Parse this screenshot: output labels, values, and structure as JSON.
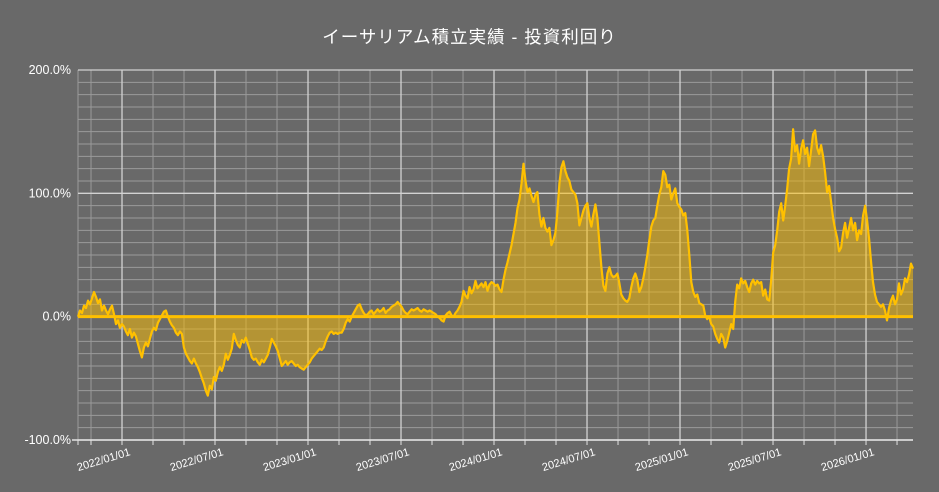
{
  "title": "イーサリアム積立実績 - 投資利回り",
  "chart_data": {
    "type": "area",
    "title": "イーサリアム積立実績 - 投資利回り",
    "series_name": "投資利回り",
    "grid": "on",
    "legend": "none",
    "colors": {
      "background": "#696969",
      "grid_minor": "#9a9a9a",
      "grid_major": "#d2d2d2",
      "axis": "#e3e3e3",
      "text": "#ffffff",
      "line": "#ffc000",
      "fill": "#ffc000",
      "baseline": "#ffc000"
    },
    "fill_opacity": 0.5,
    "y_axis": {
      "unit": "%",
      "min": -100,
      "max": 200,
      "major_step": 100,
      "minor_step": 10,
      "tick_labels": [
        "200.0%",
        "100.0%",
        "0.0%",
        "-100.0%"
      ],
      "tick_values": [
        200,
        100,
        0,
        -100
      ]
    },
    "x_axis": {
      "range_start": "2021/10",
      "range_end": "2026/04",
      "tick_labels": [
        "2022/01/01",
        "2022/07/01",
        "2023/01/01",
        "2023/07/01",
        "2024/01/01",
        "2024/07/01",
        "2025/01/01",
        "2025/07/01",
        "2026/01/01"
      ],
      "first_tick_frac": 0.0527,
      "tick_spacing_frac": 0.11138,
      "minor_divisions_per_major": 3,
      "label_rotation_deg": -17
    },
    "values_note": "investment return %, evenly spaced samples from 2021/10 to 2026/04",
    "values": [
      0,
      5,
      3,
      9,
      7,
      13,
      10,
      15,
      20,
      16,
      11,
      14,
      5,
      9,
      5,
      2,
      6,
      9,
      2,
      -6,
      -3,
      -9,
      -6,
      -8,
      -12,
      -15,
      -10,
      -17,
      -13,
      -16,
      -22,
      -28,
      -33,
      -25,
      -21,
      -24,
      -18,
      -12,
      -9,
      -11,
      -5,
      -2,
      1,
      4,
      5,
      0,
      -4,
      -7,
      -9,
      -13,
      -15,
      -12,
      -14,
      -25,
      -30,
      -33,
      -36,
      -38,
      -34,
      -38,
      -41,
      -45,
      -50,
      -54,
      -60,
      -64,
      -56,
      -59,
      -49,
      -52,
      -45,
      -41,
      -44,
      -39,
      -30,
      -35,
      -31,
      -26,
      -14,
      -19,
      -23,
      -25,
      -19,
      -21,
      -17,
      -22,
      -27,
      -33,
      -35,
      -34,
      -37,
      -39,
      -35,
      -37,
      -34,
      -31,
      -25,
      -18,
      -21,
      -24,
      -28,
      -34,
      -40,
      -38,
      -36,
      -39,
      -37,
      -36,
      -38,
      -40,
      -39,
      -41,
      -42,
      -43,
      -41,
      -39,
      -37,
      -34,
      -32,
      -30,
      -28,
      -26,
      -27,
      -25,
      -20,
      -16,
      -13,
      -12,
      -14,
      -13,
      -14,
      -13,
      -13,
      -10,
      -5,
      -2,
      -4,
      0,
      3,
      6,
      9,
      10,
      6,
      3,
      1,
      2,
      4,
      5,
      2,
      4,
      6,
      4,
      5,
      7,
      3,
      5,
      6,
      8,
      9,
      10,
      12,
      10,
      8,
      5,
      3,
      2,
      4,
      6,
      5,
      6,
      7,
      5,
      4,
      6,
      5,
      4,
      5,
      4,
      3,
      2,
      0,
      -1,
      -3,
      -4,
      1,
      3,
      4,
      1,
      0,
      3,
      5,
      8,
      12,
      21,
      17,
      15,
      24,
      19,
      22,
      29,
      23,
      25,
      27,
      24,
      28,
      21,
      26,
      28,
      27,
      25,
      26,
      22,
      20,
      30,
      38,
      44,
      51,
      58,
      67,
      76,
      88,
      95,
      108,
      124,
      110,
      101,
      104,
      98,
      93,
      99,
      101,
      83,
      73,
      80,
      72,
      69,
      72,
      58,
      62,
      68,
      85,
      108,
      121,
      126,
      118,
      113,
      110,
      103,
      101,
      99,
      92,
      74,
      80,
      86,
      90,
      92,
      80,
      73,
      83,
      91,
      80,
      60,
      40,
      25,
      21,
      35,
      40,
      34,
      32,
      33,
      35,
      27,
      18,
      15,
      13,
      12,
      15,
      24,
      31,
      35,
      30,
      20,
      24,
      31,
      40,
      50,
      62,
      73,
      78,
      80,
      90,
      99,
      105,
      118,
      115,
      105,
      107,
      95,
      100,
      104,
      92,
      89,
      87,
      82,
      84,
      70,
      50,
      28,
      20,
      16,
      18,
      11,
      10,
      9,
      1,
      -2,
      0,
      -6,
      -8,
      -14,
      -18,
      -21,
      -14,
      -17,
      -25,
      -20,
      -13,
      -6,
      -10,
      12,
      26,
      23,
      31,
      27,
      29,
      24,
      20,
      27,
      30,
      26,
      29,
      27,
      28,
      17,
      22,
      14,
      13,
      30,
      52,
      58,
      70,
      85,
      92,
      78,
      90,
      104,
      120,
      128,
      152,
      134,
      139,
      124,
      136,
      143,
      132,
      137,
      122,
      135,
      148,
      151,
      137,
      132,
      139,
      130,
      117,
      101,
      106,
      93,
      80,
      71,
      64,
      53,
      56,
      68,
      76,
      64,
      72,
      80,
      70,
      76,
      62,
      70,
      67,
      82,
      90,
      78,
      63,
      44,
      28,
      18,
      12,
      10,
      8,
      10,
      5,
      -3,
      7,
      13,
      17,
      10,
      14,
      27,
      18,
      22,
      31,
      28,
      34,
      43,
      39
    ]
  }
}
